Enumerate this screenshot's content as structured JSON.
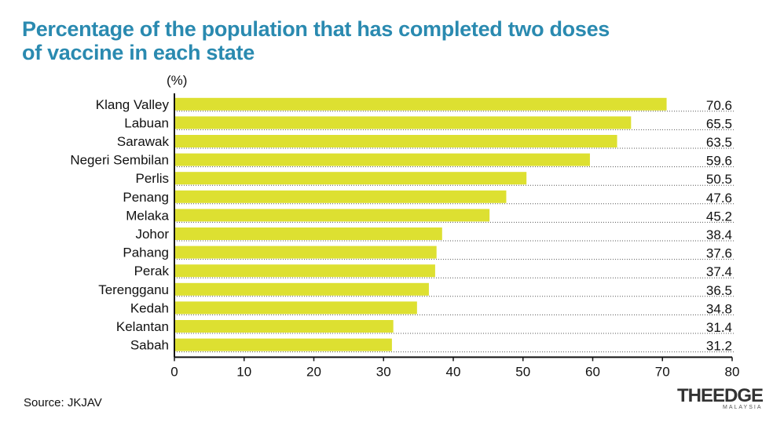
{
  "title_line1": "Percentage of the population that has completed two doses",
  "title_line2": "of vaccine in each state",
  "source": "Source: JKJAV",
  "logo": {
    "main": "THEEDGE",
    "sub": "MALAYSIA"
  },
  "colors": {
    "bar": "#dde031",
    "title": "#2a8ab0",
    "axis": "#111111"
  },
  "chart_data": {
    "type": "bar",
    "orientation": "horizontal",
    "unit_label": "(%)",
    "categories": [
      "Klang Valley",
      "Labuan",
      "Sarawak",
      "Negeri Sembilan",
      "Perlis",
      "Penang",
      "Melaka",
      "Johor",
      "Pahang",
      "Perak",
      "Terengganu",
      "Kedah",
      "Kelantan",
      "Sabah"
    ],
    "values": [
      70.6,
      65.5,
      63.5,
      59.6,
      50.5,
      47.6,
      45.2,
      38.4,
      37.6,
      37.4,
      36.5,
      34.8,
      31.4,
      31.2
    ],
    "value_labels": [
      "70.6",
      "65.5",
      "63.5",
      "59.6",
      "50.5",
      "47.6",
      "45.2",
      "38.4",
      "37.6",
      "37.4",
      "36.5",
      "34.8",
      "31.4",
      "31.2"
    ],
    "xlim": [
      0,
      80
    ],
    "xticks": [
      0,
      10,
      20,
      30,
      40,
      50,
      60,
      70,
      80
    ],
    "grid": false
  }
}
